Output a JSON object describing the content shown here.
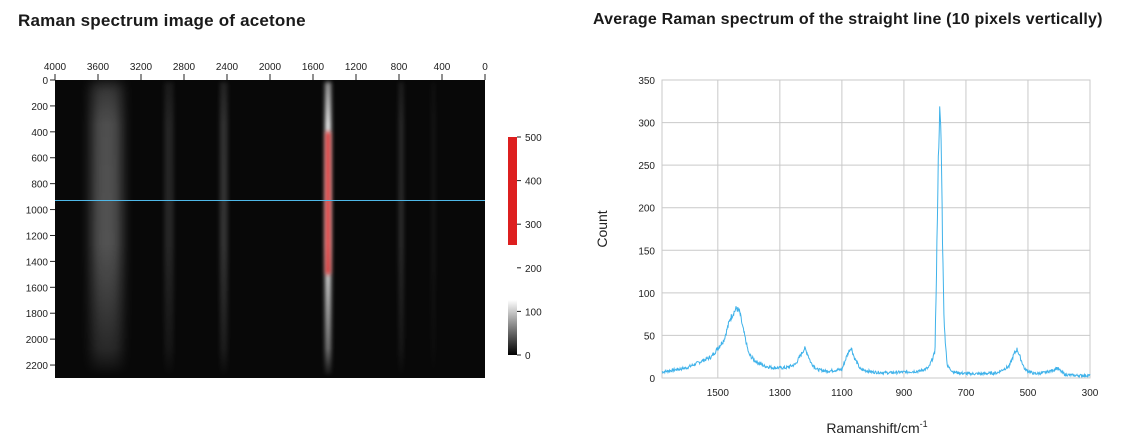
{
  "image_panel": {
    "title": "Raman spectrum image of acetone",
    "x_ticks": [
      4000,
      3600,
      3200,
      2800,
      2400,
      2000,
      1600,
      1200,
      800,
      400,
      0
    ],
    "y_ticks": [
      0,
      200,
      400,
      600,
      800,
      1000,
      1200,
      1400,
      1600,
      1800,
      2000,
      2200
    ],
    "x_range": [
      4000,
      0
    ],
    "y_range": [
      0,
      2300
    ],
    "line_row": 930,
    "line_color": "#4fb8e8",
    "bands": [
      {
        "shift": 3520,
        "width": 70,
        "intensity": 0.3
      },
      {
        "shift": 2940,
        "width": 22,
        "intensity": 0.12
      },
      {
        "shift": 2430,
        "width": 18,
        "intensity": 0.18
      },
      {
        "shift": 1460,
        "width": 14,
        "intensity": 1.0
      },
      {
        "shift": 780,
        "width": 12,
        "intensity": 0.15
      },
      {
        "shift": 480,
        "width": 10,
        "intensity": 0.06
      }
    ]
  },
  "colorbar": {
    "ticks": [
      0,
      100,
      200,
      300,
      400,
      500
    ],
    "range": [
      0,
      500
    ],
    "threshold": 250,
    "high_color": "#dd1f1f"
  },
  "chart_data": {
    "type": "line",
    "title": "Average Raman spectrum of the straight line (10 pixels vertically)",
    "xlabel": "Ramanshift/cm",
    "xlabel_sup": "-1",
    "ylabel": "Count",
    "xlim": [
      1680,
      300
    ],
    "ylim": [
      0,
      350
    ],
    "x_ticks": [
      1500,
      1300,
      1100,
      900,
      700,
      500,
      300
    ],
    "y_ticks": [
      0,
      50,
      100,
      150,
      200,
      250,
      300,
      350
    ],
    "grid": true,
    "series": [
      {
        "color": "#3fb2ea",
        "x": [
          1680,
          1600,
          1520,
          1480,
          1460,
          1440,
          1430,
          1420,
          1400,
          1380,
          1350,
          1320,
          1280,
          1250,
          1220,
          1210,
          1200,
          1180,
          1150,
          1100,
          1080,
          1070,
          1060,
          1040,
          1000,
          950,
          900,
          850,
          820,
          800,
          795,
          790,
          785,
          780,
          775,
          770,
          760,
          740,
          700,
          650,
          600,
          560,
          545,
          535,
          525,
          510,
          480,
          450,
          420,
          405,
          395,
          380,
          350,
          300
        ],
        "y": [
          7,
          12,
          25,
          45,
          70,
          82,
          78,
          60,
          28,
          20,
          14,
          12,
          12,
          16,
          35,
          28,
          18,
          10,
          8,
          10,
          30,
          36,
          24,
          10,
          7,
          6,
          7,
          8,
          12,
          30,
          120,
          240,
          315,
          280,
          150,
          60,
          14,
          7,
          5,
          5,
          6,
          14,
          28,
          34,
          24,
          10,
          5,
          6,
          9,
          12,
          8,
          4,
          3,
          3
        ]
      }
    ]
  }
}
